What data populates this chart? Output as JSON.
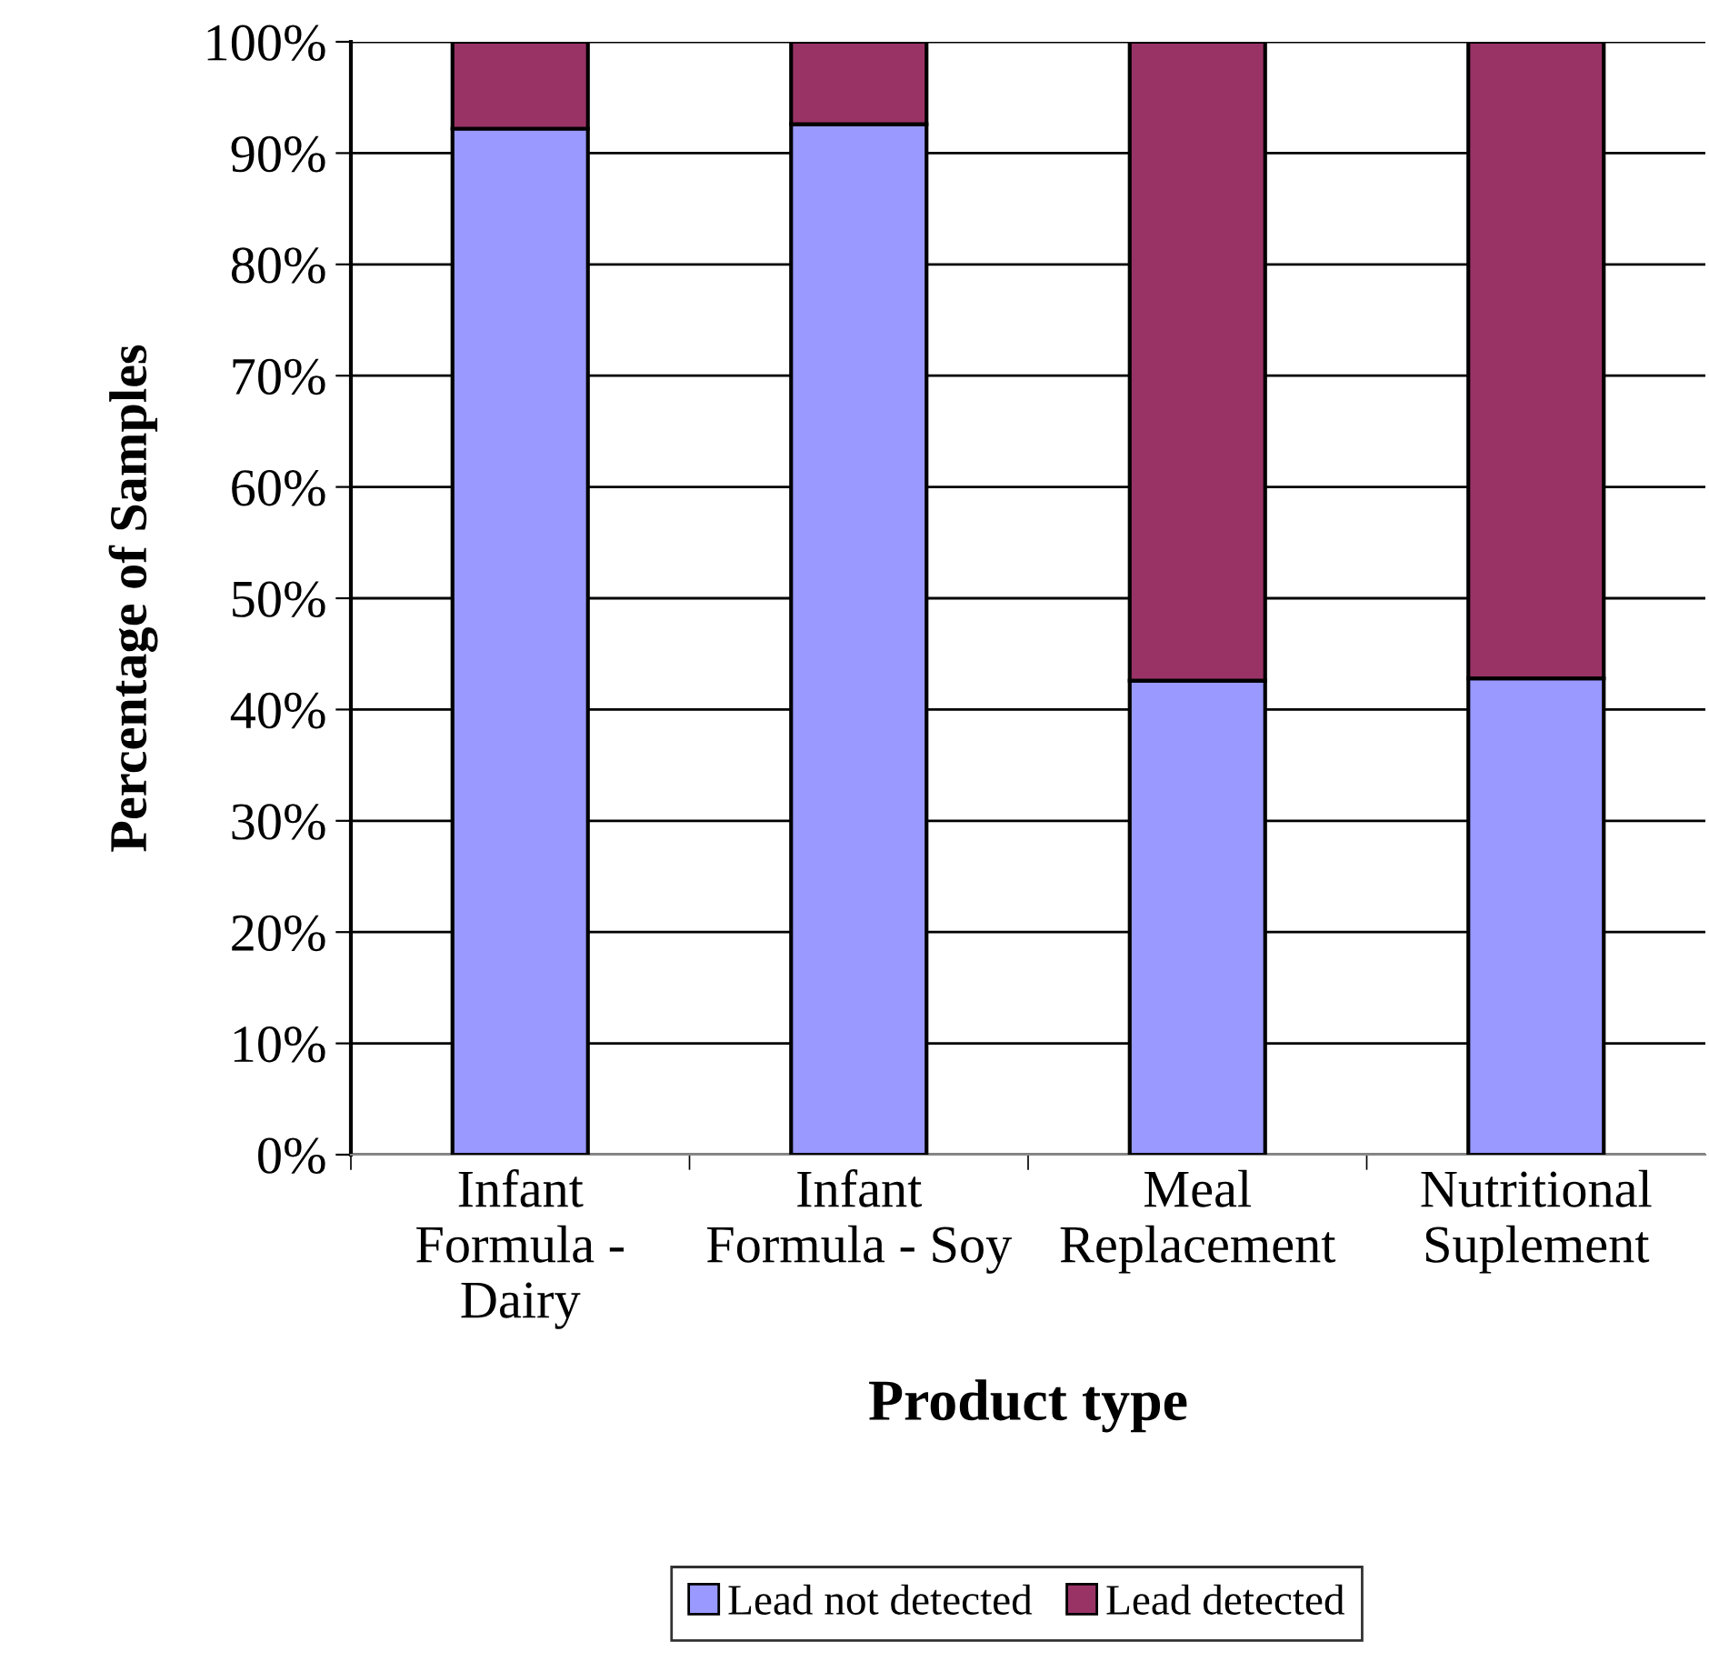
{
  "chart_data": {
    "type": "bar",
    "stacked": true,
    "xlabel": "Product type",
    "ylabel": "Percentage of Samples",
    "categories": [
      "Infant\nFormula -\nDairy",
      "Infant\nFormula - Soy",
      "Meal\nReplacement",
      "Nutritional\nSuplement"
    ],
    "series": [
      {
        "name": "Lead not detected",
        "color": "#9999ff",
        "values": [
          92.2,
          92.6,
          42.6,
          42.8
        ]
      },
      {
        "name": "Lead detected",
        "color": "#993366",
        "values": [
          7.8,
          7.4,
          57.4,
          57.2
        ]
      }
    ],
    "ylim": [
      0,
      100
    ],
    "yticks": [
      {
        "value": 0,
        "label": "0%"
      },
      {
        "value": 10,
        "label": "10%"
      },
      {
        "value": 20,
        "label": "20%"
      },
      {
        "value": 30,
        "label": "30%"
      },
      {
        "value": 40,
        "label": "40%"
      },
      {
        "value": 50,
        "label": "50%"
      },
      {
        "value": 60,
        "label": "60%"
      },
      {
        "value": 70,
        "label": "70%"
      },
      {
        "value": 80,
        "label": "80%"
      },
      {
        "value": 90,
        "label": "90%"
      },
      {
        "value": 100,
        "label": "100%"
      }
    ],
    "grid": "y",
    "legend": "bottom"
  }
}
